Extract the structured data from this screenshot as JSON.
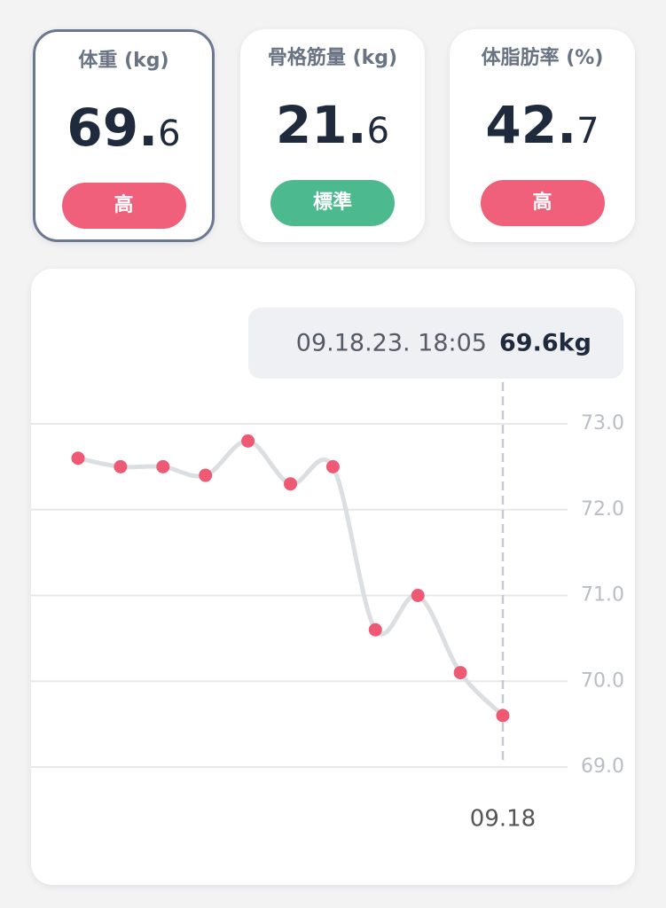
{
  "cards": [
    {
      "title": "体重 (kg)",
      "main": "69.",
      "decimal": "6",
      "badge": "高",
      "badge_color": "#f0607a",
      "selected": true
    },
    {
      "title": "骨格筋量 (kg)",
      "main": "21.",
      "decimal": "6",
      "badge": "標準",
      "badge_color": "#4cba8e",
      "selected": false
    },
    {
      "title": "体脂肪率 (%)",
      "main": "42.",
      "decimal": "7",
      "badge": "高",
      "badge_color": "#f0607a",
      "selected": false
    }
  ],
  "chart_data": {
    "type": "line",
    "tooltip": {
      "date": "09.18.23. 18:05",
      "value": "69.6kg"
    },
    "categories": [
      null,
      null,
      null,
      null,
      null,
      null,
      null,
      null,
      null,
      null,
      "09.18"
    ],
    "series": [
      {
        "line_color": "#dcdfe2",
        "point_color": "#ee5a74",
        "values": [
          72.6,
          72.5,
          72.5,
          72.4,
          72.8,
          72.3,
          72.5,
          70.6,
          71.0,
          70.1,
          69.6
        ]
      }
    ],
    "ylim": [
      69,
      73
    ],
    "yticks": [
      {
        "value": 69,
        "label": "69.0"
      },
      {
        "value": 70,
        "label": "70.0"
      },
      {
        "value": 71,
        "label": "71.0"
      },
      {
        "value": 72,
        "label": "72.0"
      },
      {
        "value": 73,
        "label": "73.0"
      }
    ],
    "grid": true
  }
}
